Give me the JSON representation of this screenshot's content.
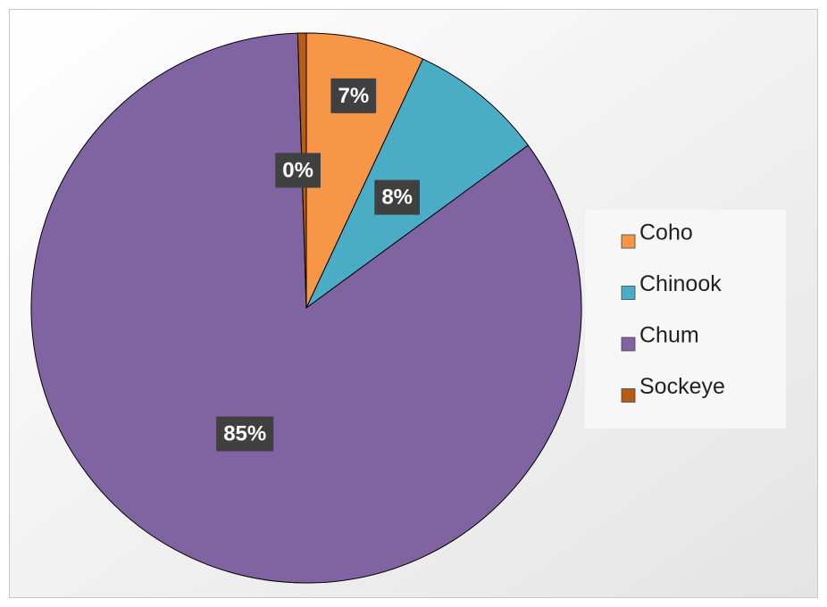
{
  "chart_data": {
    "type": "pie",
    "categories": [
      "Coho",
      "Chinook",
      "Chum",
      "Sockeye"
    ],
    "values": [
      7,
      8,
      85,
      0.5
    ],
    "value_labels": [
      "7%",
      "8%",
      "85%",
      "0%"
    ],
    "colors": [
      "#f79646",
      "#4bacc6",
      "#8064a2",
      "#b85b14"
    ],
    "legend": "right"
  }
}
